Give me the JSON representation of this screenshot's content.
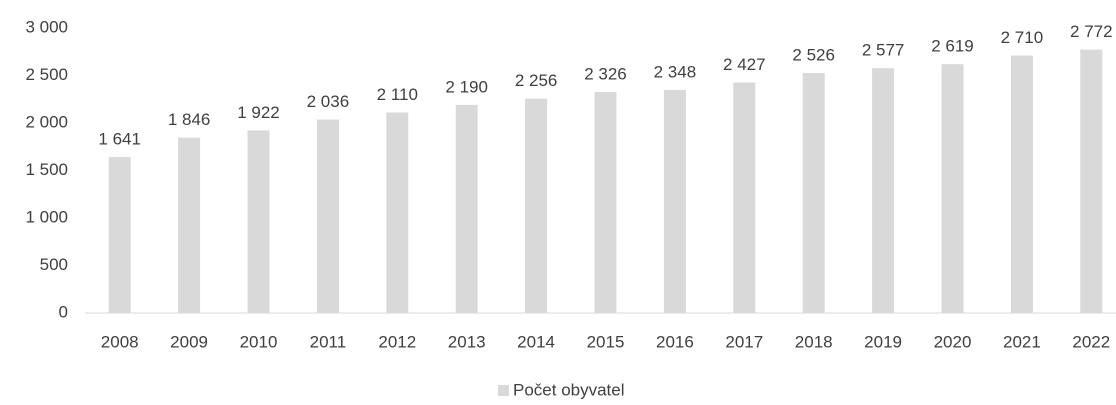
{
  "chart_data": {
    "type": "bar",
    "categories": [
      "2008",
      "2009",
      "2010",
      "2011",
      "2012",
      "2013",
      "2014",
      "2015",
      "2016",
      "2017",
      "2018",
      "2019",
      "2020",
      "2021",
      "2022"
    ],
    "series": [
      {
        "name": "Počet obyvatel",
        "color": "#d9d9d9",
        "values": [
          1641,
          1846,
          1922,
          2036,
          2110,
          2190,
          2256,
          2326,
          2348,
          2427,
          2526,
          2577,
          2619,
          2710,
          2772
        ],
        "value_labels": [
          "1 641",
          "1 846",
          "1 922",
          "2 036",
          "2 110",
          "2 190",
          "2 256",
          "2 326",
          "2 348",
          "2 427",
          "2 526",
          "2 577",
          "2 619",
          "2 710",
          "2 772"
        ]
      }
    ],
    "ylim": [
      0,
      3000
    ],
    "yticks": [
      0,
      500,
      {
        "value": 1000,
        "label": "1 000"
      },
      {
        "value": 1500,
        "label": "1 500"
      },
      {
        "value": 2000,
        "label": "2 000"
      },
      {
        "value": 2500,
        "label": "2 500"
      },
      {
        "value": 3000,
        "label": "3 000"
      }
    ],
    "grid": false,
    "legend": "bottom"
  }
}
